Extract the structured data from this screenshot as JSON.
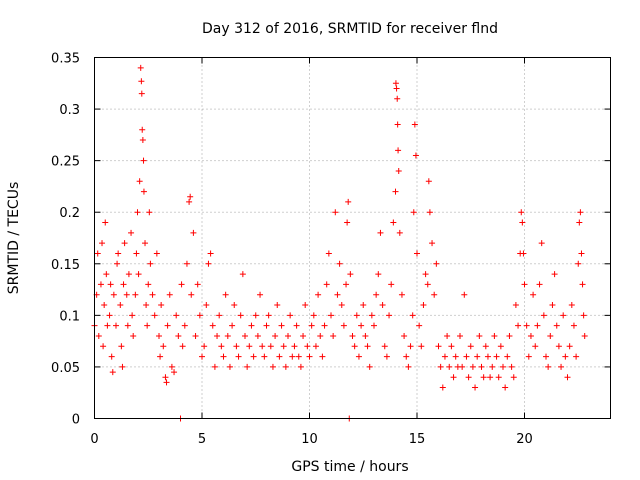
{
  "chart_data": {
    "type": "scatter",
    "title": "Day 312 of 2016, SRMTID for receiver flnd",
    "xlabel": "GPS time / hours",
    "ylabel": "SRMTID / TECUs",
    "xlim": [
      0,
      24
    ],
    "ylim": [
      0,
      0.35
    ],
    "xticks": [
      0,
      5,
      10,
      15,
      20
    ],
    "xtick_labels": [
      "0",
      "5",
      "10",
      "15",
      "20"
    ],
    "yticks": [
      0,
      0.05,
      0.1,
      0.15,
      0.2,
      0.25,
      0.3,
      0.35
    ],
    "ytick_labels": [
      "0",
      "0.05",
      "0.1",
      "0.15",
      "0.2",
      "0.25",
      "0.3",
      "0.35"
    ],
    "grid": true,
    "marker": "+",
    "color": "#ff0000",
    "series": [
      {
        "name": "SRMTID",
        "points": [
          [
            0.0,
            0.09
          ],
          [
            0.1,
            0.12
          ],
          [
            0.15,
            0.16
          ],
          [
            0.2,
            0.08
          ],
          [
            0.3,
            0.13
          ],
          [
            0.35,
            0.17
          ],
          [
            0.4,
            0.07
          ],
          [
            0.45,
            0.11
          ],
          [
            0.5,
            0.19
          ],
          [
            0.55,
            0.14
          ],
          [
            0.6,
            0.09
          ],
          [
            0.7,
            0.1
          ],
          [
            0.75,
            0.13
          ],
          [
            0.8,
            0.06
          ],
          [
            0.85,
            0.045
          ],
          [
            0.9,
            0.12
          ],
          [
            1.0,
            0.09
          ],
          [
            1.05,
            0.15
          ],
          [
            1.1,
            0.16
          ],
          [
            1.2,
            0.11
          ],
          [
            1.25,
            0.07
          ],
          [
            1.3,
            0.05
          ],
          [
            1.35,
            0.13
          ],
          [
            1.4,
            0.17
          ],
          [
            1.5,
            0.12
          ],
          [
            1.55,
            0.09
          ],
          [
            1.6,
            0.14
          ],
          [
            1.7,
            0.18
          ],
          [
            1.75,
            0.1
          ],
          [
            1.8,
            0.08
          ],
          [
            1.9,
            0.12
          ],
          [
            1.95,
            0.16
          ],
          [
            2.0,
            0.2
          ],
          [
            2.05,
            0.14
          ],
          [
            2.1,
            0.23
          ],
          [
            2.15,
            0.34
          ],
          [
            2.18,
            0.327
          ],
          [
            2.2,
            0.315
          ],
          [
            2.22,
            0.28
          ],
          [
            2.25,
            0.27
          ],
          [
            2.28,
            0.25
          ],
          [
            2.3,
            0.22
          ],
          [
            2.35,
            0.17
          ],
          [
            2.4,
            0.11
          ],
          [
            2.45,
            0.09
          ],
          [
            2.5,
            0.13
          ],
          [
            2.55,
            0.2
          ],
          [
            2.6,
            0.15
          ],
          [
            2.7,
            0.12
          ],
          [
            2.8,
            0.1
          ],
          [
            2.9,
            0.16
          ],
          [
            3.0,
            0.08
          ],
          [
            3.05,
            0.06
          ],
          [
            3.1,
            0.11
          ],
          [
            3.2,
            0.07
          ],
          [
            3.3,
            0.04
          ],
          [
            3.35,
            0.035
          ],
          [
            3.4,
            0.09
          ],
          [
            3.5,
            0.12
          ],
          [
            3.6,
            0.05
          ],
          [
            3.7,
            0.045
          ],
          [
            3.8,
            0.1
          ],
          [
            3.9,
            0.08
          ],
          [
            4.0,
            0.0
          ],
          [
            4.05,
            0.13
          ],
          [
            4.1,
            0.07
          ],
          [
            4.2,
            0.09
          ],
          [
            4.3,
            0.15
          ],
          [
            4.4,
            0.21
          ],
          [
            4.45,
            0.215
          ],
          [
            4.5,
            0.12
          ],
          [
            4.6,
            0.18
          ],
          [
            4.7,
            0.08
          ],
          [
            4.8,
            0.13
          ],
          [
            4.9,
            0.1
          ],
          [
            5.0,
            0.06
          ],
          [
            5.1,
            0.07
          ],
          [
            5.2,
            0.11
          ],
          [
            5.3,
            0.15
          ],
          [
            5.4,
            0.16
          ],
          [
            5.5,
            0.09
          ],
          [
            5.6,
            0.05
          ],
          [
            5.7,
            0.08
          ],
          [
            5.8,
            0.1
          ],
          [
            5.9,
            0.07
          ],
          [
            6.0,
            0.06
          ],
          [
            6.1,
            0.12
          ],
          [
            6.2,
            0.08
          ],
          [
            6.3,
            0.05
          ],
          [
            6.4,
            0.09
          ],
          [
            6.5,
            0.11
          ],
          [
            6.6,
            0.07
          ],
          [
            6.7,
            0.06
          ],
          [
            6.8,
            0.1
          ],
          [
            6.9,
            0.14
          ],
          [
            7.0,
            0.08
          ],
          [
            7.1,
            0.05
          ],
          [
            7.2,
            0.07
          ],
          [
            7.3,
            0.09
          ],
          [
            7.4,
            0.06
          ],
          [
            7.5,
            0.1
          ],
          [
            7.6,
            0.08
          ],
          [
            7.7,
            0.12
          ],
          [
            7.8,
            0.07
          ],
          [
            7.9,
            0.06
          ],
          [
            8.0,
            0.09
          ],
          [
            8.1,
            0.1
          ],
          [
            8.2,
            0.07
          ],
          [
            8.3,
            0.05
          ],
          [
            8.4,
            0.08
          ],
          [
            8.5,
            0.11
          ],
          [
            8.6,
            0.06
          ],
          [
            8.7,
            0.09
          ],
          [
            8.8,
            0.07
          ],
          [
            8.9,
            0.05
          ],
          [
            9.0,
            0.08
          ],
          [
            9.1,
            0.1
          ],
          [
            9.2,
            0.06
          ],
          [
            9.3,
            0.07
          ],
          [
            9.4,
            0.09
          ],
          [
            9.5,
            0.06
          ],
          [
            9.6,
            0.05
          ],
          [
            9.7,
            0.08
          ],
          [
            9.8,
            0.11
          ],
          [
            9.9,
            0.07
          ],
          [
            10.0,
            0.06
          ],
          [
            10.1,
            0.09
          ],
          [
            10.2,
            0.1
          ],
          [
            10.3,
            0.07
          ],
          [
            10.4,
            0.12
          ],
          [
            10.5,
            0.08
          ],
          [
            10.6,
            0.06
          ],
          [
            10.7,
            0.09
          ],
          [
            10.8,
            0.13
          ],
          [
            10.9,
            0.16
          ],
          [
            11.0,
            0.1
          ],
          [
            11.1,
            0.08
          ],
          [
            11.2,
            0.2
          ],
          [
            11.3,
            0.12
          ],
          [
            11.4,
            0.15
          ],
          [
            11.5,
            0.11
          ],
          [
            11.6,
            0.09
          ],
          [
            11.7,
            0.13
          ],
          [
            11.75,
            0.19
          ],
          [
            11.8,
            0.21
          ],
          [
            11.85,
            0.0
          ],
          [
            11.9,
            0.14
          ],
          [
            12.0,
            0.08
          ],
          [
            12.1,
            0.07
          ],
          [
            12.2,
            0.1
          ],
          [
            12.3,
            0.06
          ],
          [
            12.4,
            0.09
          ],
          [
            12.5,
            0.11
          ],
          [
            12.6,
            0.08
          ],
          [
            12.7,
            0.07
          ],
          [
            12.8,
            0.05
          ],
          [
            12.9,
            0.1
          ],
          [
            13.0,
            0.09
          ],
          [
            13.1,
            0.12
          ],
          [
            13.2,
            0.14
          ],
          [
            13.3,
            0.18
          ],
          [
            13.4,
            0.11
          ],
          [
            13.5,
            0.07
          ],
          [
            13.6,
            0.06
          ],
          [
            13.7,
            0.1
          ],
          [
            13.8,
            0.13
          ],
          [
            13.9,
            0.19
          ],
          [
            14.0,
            0.22
          ],
          [
            14.02,
            0.325
          ],
          [
            14.05,
            0.32
          ],
          [
            14.08,
            0.31
          ],
          [
            14.1,
            0.285
          ],
          [
            14.12,
            0.26
          ],
          [
            14.15,
            0.24
          ],
          [
            14.2,
            0.18
          ],
          [
            14.3,
            0.12
          ],
          [
            14.4,
            0.08
          ],
          [
            14.5,
            0.06
          ],
          [
            14.6,
            0.05
          ],
          [
            14.7,
            0.07
          ],
          [
            14.8,
            0.1
          ],
          [
            14.85,
            0.2
          ],
          [
            14.9,
            0.285
          ],
          [
            14.95,
            0.255
          ],
          [
            15.0,
            0.16
          ],
          [
            15.1,
            0.09
          ],
          [
            15.2,
            0.07
          ],
          [
            15.3,
            0.11
          ],
          [
            15.4,
            0.14
          ],
          [
            15.5,
            0.13
          ],
          [
            15.55,
            0.23
          ],
          [
            15.6,
            0.2
          ],
          [
            15.7,
            0.17
          ],
          [
            15.8,
            0.12
          ],
          [
            15.9,
            0.15
          ],
          [
            16.0,
            0.07
          ],
          [
            16.1,
            0.05
          ],
          [
            16.2,
            0.03
          ],
          [
            16.3,
            0.06
          ],
          [
            16.4,
            0.08
          ],
          [
            16.5,
            0.05
          ],
          [
            16.6,
            0.07
          ],
          [
            16.7,
            0.04
          ],
          [
            16.8,
            0.06
          ],
          [
            16.9,
            0.05
          ],
          [
            17.0,
            0.08
          ],
          [
            17.1,
            0.05
          ],
          [
            17.2,
            0.12
          ],
          [
            17.3,
            0.06
          ],
          [
            17.4,
            0.04
          ],
          [
            17.5,
            0.07
          ],
          [
            17.6,
            0.05
          ],
          [
            17.7,
            0.03
          ],
          [
            17.8,
            0.06
          ],
          [
            17.9,
            0.08
          ],
          [
            18.0,
            0.05
          ],
          [
            18.1,
            0.04
          ],
          [
            18.2,
            0.07
          ],
          [
            18.3,
            0.06
          ],
          [
            18.4,
            0.04
          ],
          [
            18.5,
            0.05
          ],
          [
            18.6,
            0.08
          ],
          [
            18.7,
            0.06
          ],
          [
            18.8,
            0.04
          ],
          [
            18.9,
            0.07
          ],
          [
            19.0,
            0.05
          ],
          [
            19.1,
            0.03
          ],
          [
            19.2,
            0.06
          ],
          [
            19.3,
            0.08
          ],
          [
            19.4,
            0.05
          ],
          [
            19.5,
            0.04
          ],
          [
            19.6,
            0.11
          ],
          [
            19.7,
            0.09
          ],
          [
            19.8,
            0.16
          ],
          [
            19.85,
            0.2
          ],
          [
            19.9,
            0.19
          ],
          [
            19.95,
            0.16
          ],
          [
            20.0,
            0.13
          ],
          [
            20.1,
            0.09
          ],
          [
            20.2,
            0.06
          ],
          [
            20.3,
            0.08
          ],
          [
            20.4,
            0.12
          ],
          [
            20.5,
            0.07
          ],
          [
            20.6,
            0.09
          ],
          [
            20.7,
            0.13
          ],
          [
            20.8,
            0.17
          ],
          [
            20.9,
            0.1
          ],
          [
            21.0,
            0.06
          ],
          [
            21.1,
            0.05
          ],
          [
            21.2,
            0.08
          ],
          [
            21.3,
            0.11
          ],
          [
            21.4,
            0.14
          ],
          [
            21.5,
            0.09
          ],
          [
            21.6,
            0.07
          ],
          [
            21.7,
            0.05
          ],
          [
            21.8,
            0.1
          ],
          [
            21.9,
            0.06
          ],
          [
            22.0,
            0.04
          ],
          [
            22.1,
            0.07
          ],
          [
            22.2,
            0.11
          ],
          [
            22.3,
            0.09
          ],
          [
            22.4,
            0.06
          ],
          [
            22.5,
            0.15
          ],
          [
            22.55,
            0.19
          ],
          [
            22.6,
            0.2
          ],
          [
            22.65,
            0.16
          ],
          [
            22.7,
            0.13
          ],
          [
            22.75,
            0.1
          ],
          [
            22.8,
            0.08
          ]
        ]
      }
    ]
  }
}
